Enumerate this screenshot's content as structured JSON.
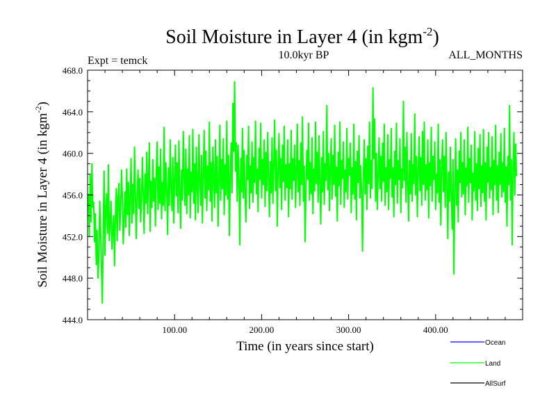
{
  "chart_data": {
    "type": "line",
    "title": "Soil Moisture in Layer 4 (in kgm",
    "title_superscript": "-2",
    "title_suffix": ")",
    "subtitle_left": "Expt = temck",
    "subtitle_center": "10.0kyr BP",
    "subtitle_right": "ALL_MONTHS",
    "xlabel": "Time (in years since start)",
    "ylabel": "Soil Moisture in Layer 4 (in kgm",
    "ylabel_superscript": "-2",
    "ylabel_suffix": ")",
    "xlim": [
      0,
      500
    ],
    "ylim": [
      444.0,
      468.0
    ],
    "xticks": [
      100,
      200,
      300,
      400
    ],
    "xtick_labels": [
      "100.00",
      "200.00",
      "300.00",
      "400.00"
    ],
    "yticks": [
      444,
      448,
      452,
      456,
      460,
      464,
      468
    ],
    "ytick_labels": [
      "444.0",
      "448.0",
      "452.0",
      "456.0",
      "460.0",
      "464.0",
      "468.0"
    ],
    "legend": [
      {
        "name": "Ocean",
        "color": "#0000ff"
      },
      {
        "name": "Land",
        "color": "#00ff00"
      },
      {
        "name": "AllSurf",
        "color": "#000000"
      }
    ],
    "series": [
      {
        "name": "Land",
        "color": "#00ff00",
        "x_start": 1,
        "x_step": 1,
        "values": [
          456.1,
          452.0,
          458.0,
          453.4,
          459.0,
          454.8,
          455.3,
          451.5,
          454.2,
          449.3,
          452.6,
          448.0,
          450.1,
          455.4,
          452.4,
          449.0,
          445.6,
          453.0,
          458.3,
          450.2,
          454.8,
          456.1,
          452.3,
          458.9,
          451.6,
          453.5,
          455.4,
          450.8,
          452.6,
          454.0,
          449.2,
          453.9,
          456.6,
          451.6,
          455.6,
          457.1,
          452.6,
          454.5,
          458.4,
          455.8,
          451.3,
          453.7,
          456.3,
          452.9,
          458.5,
          454.1,
          457.2,
          452.1,
          455.8,
          459.5,
          453.3,
          457.0,
          454.2,
          460.6,
          455.9,
          451.8,
          456.0,
          458.4,
          454.7,
          457.6,
          453.4,
          455.5,
          459.6,
          456.0,
          452.3,
          458.0,
          455.2,
          460.1,
          454.2,
          457.6,
          461.0,
          452.5,
          457.3,
          454.8,
          459.4,
          455.4,
          457.6,
          453.0,
          458.3,
          461.1,
          454.6,
          458.7,
          455.2,
          460.4,
          453.7,
          457.2,
          455.0,
          462.5,
          454.5,
          459.1,
          456.5,
          452.2,
          458.6,
          455.0,
          461.3,
          456.8,
          454.5,
          459.6,
          453.3,
          457.3,
          460.8,
          455.9,
          459.1,
          454.3,
          461.2,
          456.5,
          452.8,
          458.4,
          455.5,
          462.1,
          457.7,
          455.0,
          460.4,
          454.2,
          458.5,
          456.0,
          461.7,
          453.8,
          458.2,
          456.3,
          462.3,
          455.2,
          459.0,
          453.6,
          460.6,
          456.9,
          454.3,
          461.8,
          457.4,
          455.0,
          459.8,
          453.3,
          458.2,
          462.2,
          455.7,
          460.2,
          454.5,
          458.8,
          456.5,
          463.0,
          455.4,
          459.1,
          453.5,
          460.6,
          457.6,
          454.8,
          461.3,
          456.2,
          459.7,
          453.0,
          457.6,
          462.7,
          455.5,
          459.4,
          456.6,
          461.4,
          454.1,
          458.9,
          456.0,
          463.1,
          455.6,
          459.8,
          452.1,
          457.8,
          461.0,
          456.2,
          464.8,
          460.2,
          466.9,
          458.3,
          461.0,
          455.4,
          460.8,
          457.6,
          451.2,
          459.5,
          456.3,
          462.4,
          455.7,
          460.3,
          456.0,
          453.4,
          459.8,
          457.5,
          462.6,
          454.7,
          458.8,
          456.2,
          461.1,
          455.3,
          459.6,
          457.2,
          463.1,
          456.1,
          458.5,
          454.4,
          460.5,
          457.5,
          462.9,
          455.7,
          459.4,
          457.0,
          461.3,
          454.9,
          460.1,
          456.4,
          462.0,
          457.8,
          453.9,
          459.2,
          456.2,
          461.5,
          455.2,
          458.7,
          463.2,
          456.4,
          460.3,
          453.0,
          458.6,
          461.9,
          456.7,
          459.5,
          454.6,
          460.8,
          457.3,
          462.6,
          455.5,
          458.9,
          456.7,
          461.3,
          453.9,
          459.0,
          456.6,
          462.2,
          455.6,
          459.5,
          457.4,
          460.8,
          454.8,
          458.0,
          462.8,
          456.3,
          459.3,
          455.0,
          461.0,
          457.0,
          463.5,
          455.4,
          458.8,
          451.5,
          456.9,
          460.3,
          457.5,
          462.9,
          455.5,
          459.1,
          456.1,
          461.5,
          454.2,
          458.5,
          456.4,
          463.0,
          457.1,
          460.1,
          455.3,
          461.7,
          457.3,
          453.2,
          459.6,
          456.3,
          462.1,
          455.1,
          459.0,
          457.4,
          464.6,
          456.5,
          460.0,
          454.5,
          458.5,
          461.4,
          455.6,
          459.8,
          457.0,
          462.7,
          455.9,
          458.7,
          453.5,
          460.1,
          456.9,
          463.0,
          455.1,
          459.3,
          457.6,
          461.1,
          454.8,
          458.4,
          456.3,
          462.4,
          455.6,
          459.5,
          457.9,
          461.0,
          454.3,
          458.6,
          456.1,
          462.8,
          455.6,
          459.2,
          453.6,
          460.2,
          457.2,
          461.7,
          455.7,
          458.8,
          456.2,
          450.6,
          458.0,
          461.3,
          456.1,
          459.5,
          454.6,
          460.7,
          457.1,
          463.0,
          455.7,
          459.3,
          456.6,
          466.3,
          459.5,
          463.3,
          455.4,
          460.0,
          454.6,
          458.1,
          461.5,
          456.6,
          459.7,
          455.4,
          461.0,
          457.3,
          462.8,
          455.0,
          458.6,
          456.3,
          461.8,
          454.6,
          459.4,
          457.6,
          462.4,
          455.8,
          458.6,
          453.9,
          460.2,
          457.0,
          462.9,
          455.2,
          459.3,
          457.5,
          461.4,
          454.3,
          458.5,
          456.7,
          465.0,
          457.4,
          460.6,
          455.3,
          462.0,
          457.4,
          453.5,
          459.3,
          456.1,
          461.9,
          455.4,
          458.9,
          457.1,
          463.8,
          456.0,
          459.7,
          453.9,
          458.5,
          461.6,
          456.4,
          459.6,
          455.0,
          462.1,
          457.0,
          463.0,
          455.5,
          458.9,
          456.5,
          461.3,
          453.8,
          459.1,
          456.9,
          462.5,
          455.4,
          459.7,
          457.5,
          461.1,
          454.6,
          458.0,
          456.2,
          462.8,
          455.3,
          459.4,
          453.1,
          458.7,
          461.3,
          456.3,
          459.7,
          454.8,
          462.0,
          457.0,
          451.8,
          458.2,
          455.4,
          460.6,
          456.0,
          452.7,
          459.4,
          448.4,
          456.2,
          461.4,
          455.0,
          458.4,
          453.4,
          460.2,
          457.2,
          462.0,
          455.8,
          459.1,
          456.1,
          461.3,
          454.1,
          458.6,
          456.9,
          462.5,
          455.3,
          459.5,
          457.2,
          460.8,
          453.6,
          458.1,
          456.4,
          462.1,
          455.5,
          459.0,
          454.5,
          460.5,
          456.6,
          461.8,
          454.9,
          458.8,
          456.2,
          462.3,
          455.4,
          459.1,
          453.6,
          460.6,
          457.2,
          462.0,
          455.7,
          458.6,
          456.5,
          461.6,
          454.1,
          459.3,
          457.0,
          462.7,
          455.5,
          458.8,
          454.3,
          460.1,
          457.0,
          461.9,
          455.8,
          459.1,
          456.3,
          462.4,
          455.3,
          458.7,
          453.0,
          459.7,
          457.0,
          464.6,
          455.5,
          459.4,
          451.2,
          458.6,
          462.0,
          456.0,
          460.9,
          457.8
        ]
      }
    ]
  }
}
